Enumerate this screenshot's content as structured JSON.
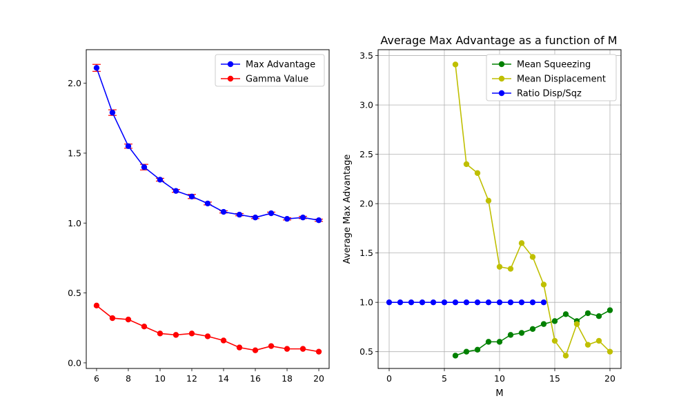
{
  "chart_data": [
    {
      "type": "line",
      "title": "",
      "xlabel": "",
      "ylabel": "",
      "xlim": [
        5.35,
        20.65
      ],
      "ylim": [
        -0.04,
        2.24
      ],
      "xticks": [
        "6",
        "8",
        "10",
        "12",
        "14",
        "16",
        "18",
        "20"
      ],
      "yticks": [
        "0.0",
        "0.5",
        "1.0",
        "1.5",
        "2.0"
      ],
      "grid": false,
      "legend_position": "upper right",
      "x": [
        6,
        7,
        8,
        9,
        10,
        11,
        12,
        13,
        14,
        15,
        16,
        17,
        18,
        19,
        20
      ],
      "series": [
        {
          "name": "Max Advantage",
          "color": "#0000ff",
          "marker": "circle",
          "values": [
            2.11,
            1.79,
            1.55,
            1.4,
            1.31,
            1.23,
            1.19,
            1.14,
            1.08,
            1.06,
            1.04,
            1.07,
            1.03,
            1.04,
            1.02
          ],
          "error": [
            0.025,
            0.02,
            0.015,
            0.02,
            0.01,
            0.01,
            0.015,
            0.01,
            0.008,
            0.008,
            0.008,
            0.008,
            0.008,
            0.008,
            0.008
          ],
          "error_color": "#ff0000"
        },
        {
          "name": "Gamma Value",
          "color": "#ff0000",
          "marker": "circle",
          "values": [
            0.41,
            0.32,
            0.31,
            0.26,
            0.21,
            0.2,
            0.21,
            0.19,
            0.16,
            0.11,
            0.09,
            0.12,
            0.1,
            0.1,
            0.08
          ]
        }
      ]
    },
    {
      "type": "line",
      "title": "Average Max Advantage as a function of M",
      "xlabel": "M",
      "ylabel": "Average Max Advantage",
      "xlim": [
        -1,
        21
      ],
      "ylim": [
        0.33,
        3.56
      ],
      "xticks": [
        "0",
        "5",
        "10",
        "15",
        "20"
      ],
      "yticks": [
        "0.5",
        "1.0",
        "1.5",
        "2.0",
        "2.5",
        "3.0",
        "3.5"
      ],
      "grid": true,
      "legend_position": "upper right",
      "series": [
        {
          "name": "Mean Squeezing",
          "color": "#008000",
          "marker": "circle",
          "x": [
            6,
            7,
            8,
            9,
            10,
            11,
            12,
            13,
            14,
            15,
            16,
            17,
            18,
            19,
            20
          ],
          "values": [
            0.46,
            0.5,
            0.52,
            0.6,
            0.6,
            0.67,
            0.69,
            0.73,
            0.78,
            0.81,
            0.88,
            0.81,
            0.89,
            0.86,
            0.92
          ]
        },
        {
          "name": "Mean Displacement",
          "color": "#bfbf00",
          "marker": "circle",
          "x": [
            6,
            7,
            8,
            9,
            10,
            11,
            12,
            13,
            14,
            15,
            16,
            17,
            18,
            19,
            20
          ],
          "values": [
            3.41,
            2.4,
            2.31,
            2.03,
            1.36,
            1.34,
            1.6,
            1.46,
            1.18,
            0.61,
            0.46,
            0.78,
            0.57,
            0.61,
            0.5
          ]
        },
        {
          "name": "Ratio Disp/Sqz",
          "color": "#0000ff",
          "marker": "circle",
          "x": [
            0,
            1,
            2,
            3,
            4,
            5,
            6,
            7,
            8,
            9,
            10,
            11,
            12,
            13,
            14
          ],
          "values": [
            1,
            1,
            1,
            1,
            1,
            1,
            1,
            1,
            1,
            1,
            1,
            1,
            1,
            1,
            1
          ]
        }
      ]
    }
  ]
}
